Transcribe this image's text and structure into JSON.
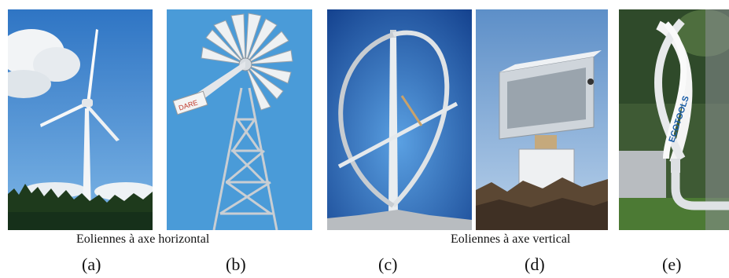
{
  "captions": {
    "horizontal": "Eoliennes à axe horizontal",
    "vertical": "Eoliennes à axe vertical"
  },
  "labels": [
    "(a)",
    "(b)",
    "(c)",
    "(d)",
    "(e)"
  ],
  "photos": [
    {
      "id": "a",
      "subject": "three-blade-horizontal-turbine"
    },
    {
      "id": "b",
      "subject": "multi-blade-windmill",
      "vane_text": "DARE"
    },
    {
      "id": "c",
      "subject": "darrieus-vertical-turbine"
    },
    {
      "id": "d",
      "subject": "box-shaped-vertical-turbine"
    },
    {
      "id": "e",
      "subject": "helical-vertical-turbine",
      "brand_text": "ECOTOOLS"
    }
  ],
  "colors": {
    "sky": "#3f86c9",
    "deep_sky": "#1b4f9a",
    "forest": "#1f3a1f",
    "metal": "#dfe3e6"
  }
}
